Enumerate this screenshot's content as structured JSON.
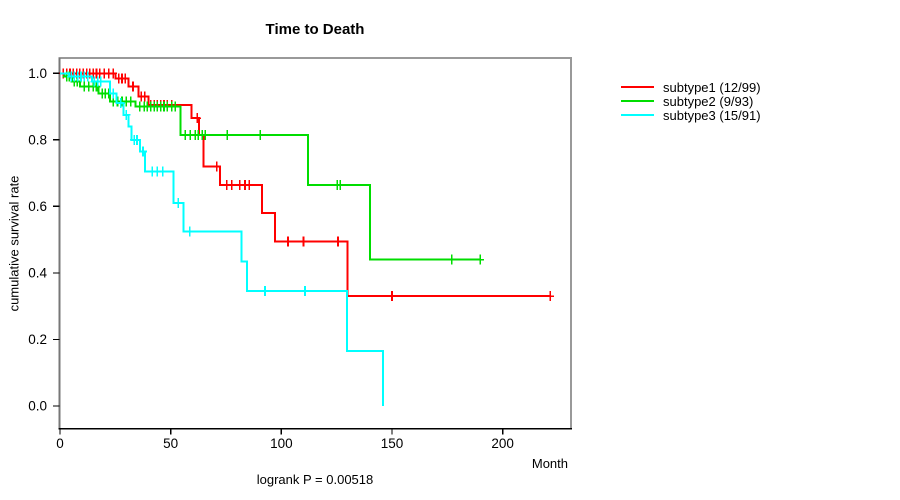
{
  "chart_data": {
    "type": "line",
    "chart_kind": "kaplan-meier-step",
    "title": "Time to Death",
    "xlabel": "Month",
    "ylabel": "cumulative survival rate",
    "annotation": "logrank P = 0.00518",
    "xlim": [
      0,
      231
    ],
    "ylim": [
      0,
      1
    ],
    "xticks": [
      0,
      50,
      100,
      150,
      200
    ],
    "yticks": [
      0.0,
      0.2,
      0.4,
      0.6,
      0.8,
      1.0
    ],
    "grid": false,
    "legend_position": "right-outside",
    "frame_color": "#999999",
    "axis_color": "#000000",
    "series": [
      {
        "name": "subtype1 (12/99)",
        "color": "#ff0000",
        "steps": [
          [
            0,
            1.0
          ],
          [
            25.1,
            0.985
          ],
          [
            30.9,
            0.96
          ],
          [
            35.4,
            0.93
          ],
          [
            39.9,
            0.905
          ],
          [
            59.5,
            0.865
          ],
          [
            62.9,
            0.815
          ],
          [
            64.9,
            0.72
          ],
          [
            72.4,
            0.665
          ],
          [
            91.3,
            0.58
          ],
          [
            97.1,
            0.495
          ],
          [
            130.0,
            0.33
          ]
        ],
        "end_month": 221.5,
        "censors": [
          [
            1.5,
            1.0
          ],
          [
            3,
            1.0
          ],
          [
            4.5,
            1.0
          ],
          [
            6,
            1.0
          ],
          [
            7.5,
            1.0
          ],
          [
            9,
            1.0
          ],
          [
            10.5,
            1.0
          ],
          [
            12,
            1.0
          ],
          [
            13.5,
            1.0
          ],
          [
            15,
            1.0
          ],
          [
            16.5,
            1.0
          ],
          [
            18,
            1.0
          ],
          [
            20,
            1.0
          ],
          [
            22,
            1.0
          ],
          [
            24,
            1.0
          ],
          [
            26.5,
            0.985
          ],
          [
            28,
            0.985
          ],
          [
            29.5,
            0.985
          ],
          [
            33,
            0.96
          ],
          [
            36.8,
            0.93
          ],
          [
            38.3,
            0.93
          ],
          [
            41,
            0.905
          ],
          [
            42.5,
            0.905
          ],
          [
            44,
            0.905
          ],
          [
            45.5,
            0.905
          ],
          [
            47,
            0.905
          ],
          [
            48.5,
            0.905
          ],
          [
            50.5,
            0.905
          ],
          [
            62,
            0.865
          ],
          [
            70.9,
            0.72
          ],
          [
            75.3,
            0.665
          ],
          [
            77.6,
            0.665
          ],
          [
            81.3,
            0.665
          ],
          [
            83.6,
            0.665
          ],
          [
            85.5,
            0.665
          ],
          [
            103,
            0.495
          ],
          [
            110,
            0.495
          ],
          [
            125.6,
            0.495
          ],
          [
            150,
            0.33
          ],
          [
            221.5,
            0.33
          ]
        ]
      },
      {
        "name": "subtype2 (9/93)",
        "color": "#00dd00",
        "steps": [
          [
            0,
            1.0
          ],
          [
            2,
            0.99
          ],
          [
            5.5,
            0.975
          ],
          [
            9,
            0.96
          ],
          [
            17.3,
            0.94
          ],
          [
            22.6,
            0.915
          ],
          [
            34,
            0.9
          ],
          [
            54.4,
            0.815
          ],
          [
            112.1,
            0.665
          ],
          [
            140.1,
            0.44
          ]
        ],
        "end_month": 190.0,
        "censors": [
          [
            3,
            0.99
          ],
          [
            4.2,
            0.99
          ],
          [
            6.5,
            0.975
          ],
          [
            7.8,
            0.975
          ],
          [
            11,
            0.96
          ],
          [
            13,
            0.96
          ],
          [
            15,
            0.96
          ],
          [
            16.5,
            0.96
          ],
          [
            19,
            0.94
          ],
          [
            20.5,
            0.94
          ],
          [
            22,
            0.94
          ],
          [
            24,
            0.915
          ],
          [
            26,
            0.915
          ],
          [
            28,
            0.915
          ],
          [
            30,
            0.915
          ],
          [
            32,
            0.915
          ],
          [
            36,
            0.9
          ],
          [
            38,
            0.9
          ],
          [
            39.5,
            0.9
          ],
          [
            41,
            0.9
          ],
          [
            42.5,
            0.9
          ],
          [
            44,
            0.9
          ],
          [
            45.5,
            0.9
          ],
          [
            47,
            0.9
          ],
          [
            48.5,
            0.9
          ],
          [
            50.5,
            0.9
          ],
          [
            52,
            0.9
          ],
          [
            56.6,
            0.815
          ],
          [
            58.9,
            0.815
          ],
          [
            61.1,
            0.815
          ],
          [
            62.4,
            0.815
          ],
          [
            64.2,
            0.815
          ],
          [
            65.7,
            0.815
          ],
          [
            75.5,
            0.815
          ],
          [
            90.5,
            0.815
          ],
          [
            125.2,
            0.665
          ],
          [
            126.6,
            0.665
          ],
          [
            177,
            0.44
          ],
          [
            189.8,
            0.44
          ]
        ]
      },
      {
        "name": "subtype3 (15/91)",
        "color": "#00ffff",
        "steps": [
          [
            0,
            1.0
          ],
          [
            4,
            0.99
          ],
          [
            14.5,
            0.975
          ],
          [
            22.6,
            0.94
          ],
          [
            25.6,
            0.91
          ],
          [
            28.6,
            0.875
          ],
          [
            30.9,
            0.84
          ],
          [
            32.4,
            0.8
          ],
          [
            36.2,
            0.765
          ],
          [
            38.4,
            0.705
          ],
          [
            51.2,
            0.61
          ],
          [
            55.7,
            0.525
          ],
          [
            82.1,
            0.435
          ],
          [
            84.4,
            0.345
          ],
          [
            129.7,
            0.165
          ],
          [
            146,
            0.0
          ]
        ],
        "end_month": 146,
        "censors": [
          [
            5,
            0.99
          ],
          [
            6.5,
            0.99
          ],
          [
            8,
            0.99
          ],
          [
            9.5,
            0.99
          ],
          [
            11,
            0.99
          ],
          [
            12.5,
            0.99
          ],
          [
            15.5,
            0.975
          ],
          [
            17,
            0.975
          ],
          [
            18.5,
            0.975
          ],
          [
            24,
            0.94
          ],
          [
            27.5,
            0.91
          ],
          [
            30,
            0.875
          ],
          [
            33.5,
            0.8
          ],
          [
            34.8,
            0.8
          ],
          [
            37.5,
            0.765
          ],
          [
            41.6,
            0.705
          ],
          [
            44,
            0.705
          ],
          [
            46.5,
            0.705
          ],
          [
            53.5,
            0.61
          ],
          [
            58.7,
            0.525
          ],
          [
            92.6,
            0.345
          ],
          [
            110.7,
            0.345
          ]
        ]
      }
    ]
  }
}
